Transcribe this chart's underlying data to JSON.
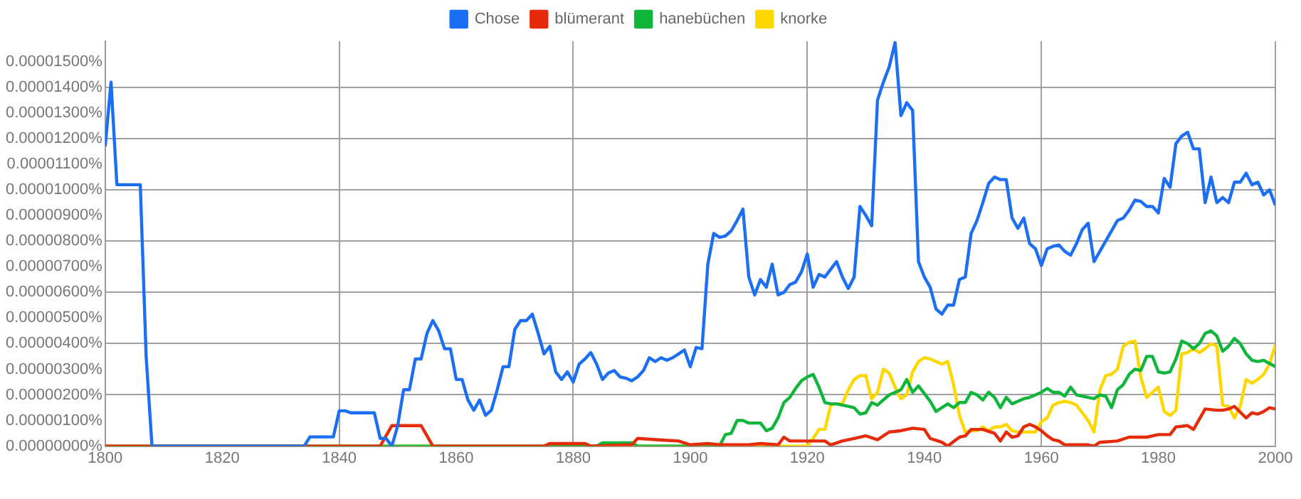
{
  "chart_data": {
    "type": "line",
    "legend": "top",
    "grid": true,
    "marker": "none",
    "line_style": "solid",
    "xlim": [
      1800,
      2000
    ],
    "xticks": [
      1800,
      1820,
      1840,
      1860,
      1880,
      1900,
      1920,
      1940,
      1960,
      1980,
      2000
    ],
    "ylim": [
      0,
      1.58e-05
    ],
    "yticks": [
      {
        "value": 0,
        "label": "0.00000000%"
      },
      {
        "value": 1e-06,
        "label": "0.00000100%"
      },
      {
        "value": 2e-06,
        "label": "0.00000200%"
      },
      {
        "value": 3e-06,
        "label": "0.00000300%"
      },
      {
        "value": 4e-06,
        "label": "0.00000400%"
      },
      {
        "value": 5e-06,
        "label": "0.00000500%"
      },
      {
        "value": 6e-06,
        "label": "0.00000600%"
      },
      {
        "value": 7e-06,
        "label": "0.00000700%"
      },
      {
        "value": 8e-06,
        "label": "0.00000800%"
      },
      {
        "value": 9e-06,
        "label": "0.00000900%"
      },
      {
        "value": 1e-05,
        "label": "0.00001000%"
      },
      {
        "value": 1.1e-05,
        "label": "0.00001100%"
      },
      {
        "value": 1.2e-05,
        "label": "0.00001200%"
      },
      {
        "value": 1.3e-05,
        "label": "0.00001300%"
      },
      {
        "value": 1.4e-05,
        "label": "0.00001400%"
      },
      {
        "value": 1.5e-05,
        "label": "0.00001500%"
      }
    ],
    "series": [
      {
        "name": "Chose",
        "color": "#1c6ef2",
        "x": [
          1800,
          1801,
          1802,
          1806,
          1807,
          1808,
          1834,
          1835,
          1839,
          1840,
          1841,
          1842,
          1846,
          1847,
          1848,
          1849,
          1850,
          1851,
          1852,
          1853,
          1854,
          1855,
          1856,
          1857,
          1858,
          1859,
          1860,
          1861,
          1862,
          1863,
          1864,
          1865,
          1866,
          1867,
          1868,
          1869,
          1870,
          1871,
          1872,
          1873,
          1874,
          1875,
          1876,
          1877,
          1878,
          1879,
          1880,
          1881,
          1882,
          1883,
          1884,
          1885,
          1886,
          1887,
          1888,
          1889,
          1890,
          1891,
          1892,
          1893,
          1894,
          1895,
          1896,
          1897,
          1898,
          1899,
          1900,
          1901,
          1902,
          1903,
          1904,
          1905,
          1906,
          1907,
          1908,
          1909,
          1910,
          1911,
          1912,
          1913,
          1914,
          1915,
          1916,
          1917,
          1918,
          1919,
          1920,
          1921,
          1922,
          1923,
          1924,
          1925,
          1926,
          1927,
          1928,
          1929,
          1930,
          1931,
          1932,
          1933,
          1934,
          1935,
          1936,
          1937,
          1938,
          1939,
          1940,
          1941,
          1942,
          1943,
          1944,
          1945,
          1946,
          1947,
          1948,
          1949,
          1950,
          1951,
          1952,
          1953,
          1954,
          1955,
          1956,
          1957,
          1958,
          1959,
          1960,
          1961,
          1962,
          1963,
          1964,
          1965,
          1966,
          1967,
          1968,
          1969,
          1970,
          1971,
          1972,
          1973,
          1974,
          1975,
          1976,
          1977,
          1978,
          1979,
          1980,
          1981,
          1982,
          1983,
          1984,
          1985,
          1986,
          1987,
          1988,
          1989,
          1990,
          1991,
          1992,
          1993,
          1994,
          1995,
          1996,
          1997,
          1998,
          1999,
          2000
        ],
        "values": [
          1.17e-05,
          1.42e-05,
          1.02e-05,
          1.02e-05,
          3.5e-06,
          0,
          0,
          3.6e-07,
          3.6e-07,
          1.38e-06,
          1.38e-06,
          1.3e-06,
          1.3e-06,
          3e-07,
          3e-07,
          0,
          8e-07,
          2.2e-06,
          2.2e-06,
          3.4e-06,
          3.4e-06,
          4.4e-06,
          4.9e-06,
          4.5e-06,
          3.8e-06,
          3.8e-06,
          2.6e-06,
          2.6e-06,
          1.8e-06,
          1.4e-06,
          1.8e-06,
          1.2e-06,
          1.4e-06,
          2.2e-06,
          3.1e-06,
          3.1e-06,
          4.55e-06,
          4.9e-06,
          4.9e-06,
          5.15e-06,
          4.4e-06,
          3.6e-06,
          3.9e-06,
          2.9e-06,
          2.6e-06,
          2.9e-06,
          2.5e-06,
          3.2e-06,
          3.4e-06,
          3.65e-06,
          3.2e-06,
          2.6e-06,
          2.85e-06,
          2.95e-06,
          2.7e-06,
          2.65e-06,
          2.55e-06,
          2.7e-06,
          2.95e-06,
          3.45e-06,
          3.3e-06,
          3.45e-06,
          3.35e-06,
          3.45e-06,
          3.6e-06,
          3.75e-06,
          3.1e-06,
          3.85e-06,
          3.8e-06,
          7.1e-06,
          8.3e-06,
          8.15e-06,
          8.2e-06,
          8.4e-06,
          8.8e-06,
          9.25e-06,
          6.6e-06,
          5.9e-06,
          6.5e-06,
          6.2e-06,
          7.1e-06,
          5.9e-06,
          6e-06,
          6.3e-06,
          6.4e-06,
          6.8e-06,
          7.5e-06,
          6.2e-06,
          6.7e-06,
          6.6e-06,
          6.9e-06,
          7.2e-06,
          6.6e-06,
          6.15e-06,
          6.6e-06,
          9.35e-06,
          9e-06,
          8.6e-06,
          1.35e-05,
          1.42e-05,
          1.48e-05,
          1.575e-05,
          1.29e-05,
          1.34e-05,
          1.31e-05,
          7.2e-06,
          6.6e-06,
          6.2e-06,
          5.35e-06,
          5.15e-06,
          5.5e-06,
          5.5e-06,
          6.5e-06,
          6.6e-06,
          8.3e-06,
          8.8e-06,
          9.5e-06,
          1.025e-05,
          1.05e-05,
          1.04e-05,
          1.04e-05,
          8.9e-06,
          8.5e-06,
          8.9e-06,
          7.9e-06,
          7.7e-06,
          7.05e-06,
          7.7e-06,
          7.8e-06,
          7.85e-06,
          7.6e-06,
          7.45e-06,
          7.9e-06,
          8.45e-06,
          8.7e-06,
          7.2e-06,
          7.6e-06,
          8e-06,
          8.4e-06,
          8.8e-06,
          8.9e-06,
          9.2e-06,
          9.6e-06,
          9.55e-06,
          9.35e-06,
          9.35e-06,
          9.1e-06,
          1.045e-05,
          1.01e-05,
          1.18e-05,
          1.21e-05,
          1.225e-05,
          1.16e-05,
          1.16e-05,
          9.5e-06,
          1.05e-05,
          9.5e-06,
          9.7e-06,
          9.5e-06,
          1.03e-05,
          1.03e-05,
          1.065e-05,
          1.02e-05,
          1.03e-05,
          9.8e-06,
          1e-05,
          9.4e-06
        ]
      },
      {
        "name": "blümerant",
        "color": "#e52b0a",
        "x": [
          1800,
          1847,
          1848,
          1849,
          1854,
          1855,
          1856,
          1875,
          1876,
          1882,
          1883,
          1890,
          1891,
          1895,
          1898,
          1900,
          1903,
          1905,
          1910,
          1912,
          1915,
          1916,
          1917,
          1920,
          1923,
          1924,
          1926,
          1928,
          1930,
          1932,
          1934,
          1936,
          1938,
          1940,
          1941,
          1943,
          1944,
          1946,
          1947,
          1948,
          1950,
          1952,
          1953,
          1954,
          1955,
          1956,
          1957,
          1958,
          1959,
          1960,
          1961,
          1962,
          1963,
          1964,
          1966,
          1968,
          1969,
          1970,
          1973,
          1975,
          1978,
          1980,
          1982,
          1983,
          1985,
          1986,
          1988,
          1990,
          1991,
          1992,
          1993,
          1995,
          1996,
          1997,
          1998,
          1999,
          2000
        ],
        "values": [
          0,
          0,
          4e-07,
          8e-07,
          8e-07,
          4e-07,
          0,
          0,
          1e-07,
          1e-07,
          0,
          5e-08,
          3e-07,
          2.4e-07,
          2e-07,
          5e-08,
          1e-07,
          5e-08,
          5e-08,
          1e-07,
          5e-08,
          3.5e-07,
          2e-07,
          2e-07,
          2e-07,
          5e-08,
          2e-07,
          3e-07,
          4e-07,
          2.5e-07,
          5.5e-07,
          6e-07,
          7e-07,
          6.5e-07,
          3e-07,
          1.5e-07,
          0,
          3.5e-07,
          4e-07,
          6.5e-07,
          6.5e-07,
          5e-07,
          2e-07,
          5.5e-07,
          3.5e-07,
          4e-07,
          7.5e-07,
          8.5e-07,
          7.5e-07,
          6e-07,
          4e-07,
          2.5e-07,
          2e-07,
          5e-08,
          5e-08,
          5e-08,
          0,
          1.5e-07,
          2e-07,
          3.5e-07,
          3.5e-07,
          4.5e-07,
          4.5e-07,
          7.5e-07,
          8e-07,
          6.5e-07,
          1.45e-06,
          1.4e-06,
          1.4e-06,
          1.45e-06,
          1.55e-06,
          1.1e-06,
          1.3e-06,
          1.25e-06,
          1.35e-06,
          1.5e-06,
          1.45e-06
        ]
      },
      {
        "name": "hanebüchen",
        "color": "#10b53c",
        "x": [
          1800,
          1884,
          1885,
          1890,
          1891,
          1905,
          1906,
          1907,
          1908,
          1909,
          1910,
          1912,
          1913,
          1914,
          1915,
          1916,
          1917,
          1918,
          1919,
          1920,
          1921,
          1922,
          1923,
          1924,
          1925,
          1926,
          1927,
          1928,
          1929,
          1930,
          1931,
          1932,
          1933,
          1934,
          1935,
          1936,
          1937,
          1938,
          1939,
          1940,
          1941,
          1942,
          1943,
          1944,
          1945,
          1946,
          1947,
          1948,
          1949,
          1950,
          1951,
          1952,
          1953,
          1954,
          1955,
          1956,
          1957,
          1958,
          1959,
          1960,
          1961,
          1962,
          1963,
          1964,
          1965,
          1966,
          1967,
          1968,
          1969,
          1970,
          1971,
          1972,
          1973,
          1974,
          1975,
          1976,
          1977,
          1978,
          1979,
          1980,
          1981,
          1982,
          1983,
          1984,
          1985,
          1986,
          1987,
          1988,
          1989,
          1990,
          1991,
          1992,
          1993,
          1994,
          1995,
          1996,
          1997,
          1998,
          2000
        ],
        "values": [
          0,
          0,
          1.3e-07,
          1.3e-07,
          0,
          0,
          4.5e-07,
          5e-07,
          1e-06,
          1e-06,
          9e-07,
          9e-07,
          6e-07,
          7e-07,
          1.1e-06,
          1.7e-06,
          1.9e-06,
          2.25e-06,
          2.55e-06,
          2.7e-06,
          2.8e-06,
          2.3e-06,
          1.7e-06,
          1.65e-06,
          1.65e-06,
          1.6e-06,
          1.55e-06,
          1.5e-06,
          1.25e-06,
          1.3e-06,
          1.7e-06,
          1.6e-06,
          1.8e-06,
          2e-06,
          2.1e-06,
          2.2e-06,
          2.6e-06,
          2.1e-06,
          2.35e-06,
          2.05e-06,
          1.75e-06,
          1.35e-06,
          1.5e-06,
          1.65e-06,
          1.5e-06,
          1.7e-06,
          1.7e-06,
          2.1e-06,
          2e-06,
          1.8e-06,
          2.1e-06,
          1.9e-06,
          1.5e-06,
          1.9e-06,
          1.65e-06,
          1.75e-06,
          1.85e-06,
          1.9e-06,
          2e-06,
          2.1e-06,
          2.25e-06,
          2.1e-06,
          2.1e-06,
          1.95e-06,
          2.3e-06,
          2e-06,
          1.95e-06,
          1.9e-06,
          1.85e-06,
          2e-06,
          1.95e-06,
          1.5e-06,
          2.2e-06,
          2.4e-06,
          2.8e-06,
          3e-06,
          2.95e-06,
          3.5e-06,
          3.5e-06,
          2.9e-06,
          2.85e-06,
          2.9e-06,
          3.4e-06,
          4.1e-06,
          4e-06,
          3.8e-06,
          4e-06,
          4.4e-06,
          4.5e-06,
          4.3e-06,
          3.7e-06,
          3.9e-06,
          4.2e-06,
          4e-06,
          3.6e-06,
          3.35e-06,
          3.3e-06,
          3.35e-06,
          3.1e-06
        ]
      },
      {
        "name": "knorke",
        "color": "#ffd700",
        "x": [
          1800,
          1920,
          1921,
          1922,
          1923,
          1924,
          1925,
          1926,
          1927,
          1928,
          1929,
          1930,
          1931,
          1932,
          1933,
          1934,
          1935,
          1936,
          1937,
          1938,
          1939,
          1940,
          1941,
          1942,
          1943,
          1944,
          1945,
          1946,
          1947,
          1948,
          1949,
          1950,
          1951,
          1952,
          1953,
          1954,
          1955,
          1956,
          1957,
          1959,
          1960,
          1961,
          1962,
          1963,
          1964,
          1965,
          1966,
          1967,
          1968,
          1969,
          1970,
          1971,
          1972,
          1973,
          1974,
          1975,
          1976,
          1977,
          1978,
          1979,
          1980,
          1981,
          1982,
          1983,
          1984,
          1985,
          1986,
          1987,
          1988,
          1989,
          1990,
          1991,
          1992,
          1993,
          1994,
          1995,
          1996,
          1997,
          1998,
          1999,
          2000
        ],
        "values": [
          0,
          0,
          3e-07,
          6.5e-07,
          6.5e-07,
          1.6e-06,
          1.65e-06,
          1.65e-06,
          2.2e-06,
          2.6e-06,
          2.75e-06,
          2.75e-06,
          1.85e-06,
          2.1e-06,
          3e-06,
          2.85e-06,
          2.3e-06,
          1.85e-06,
          2e-06,
          2.9e-06,
          3.3e-06,
          3.45e-06,
          3.4e-06,
          3.3e-06,
          3.2e-06,
          3.3e-06,
          2.4e-06,
          1.2e-06,
          5.5e-07,
          6e-07,
          6e-07,
          7.5e-07,
          6e-07,
          7.5e-07,
          7.5e-07,
          8.5e-07,
          6e-07,
          5.5e-07,
          5.5e-07,
          5.5e-07,
          9.5e-07,
          1.1e-06,
          1.6e-06,
          1.7e-06,
          1.75e-06,
          1.7e-06,
          1.6e-06,
          1.3e-06,
          1e-06,
          5.5e-07,
          2.2e-06,
          2.75e-06,
          2.8e-06,
          3e-06,
          3.9e-06,
          4.05e-06,
          4.1e-06,
          2.7e-06,
          1.9e-06,
          2.1e-06,
          2.3e-06,
          1.35e-06,
          1.2e-06,
          1.4e-06,
          3.6e-06,
          3.65e-06,
          3.8e-06,
          3.65e-06,
          3.8e-06,
          4e-06,
          3.9e-06,
          1.6e-06,
          1.55e-06,
          1.1e-06,
          1.55e-06,
          2.6e-06,
          2.45e-06,
          2.6e-06,
          2.8e-06,
          3.2e-06,
          3.95e-06
        ]
      }
    ]
  }
}
